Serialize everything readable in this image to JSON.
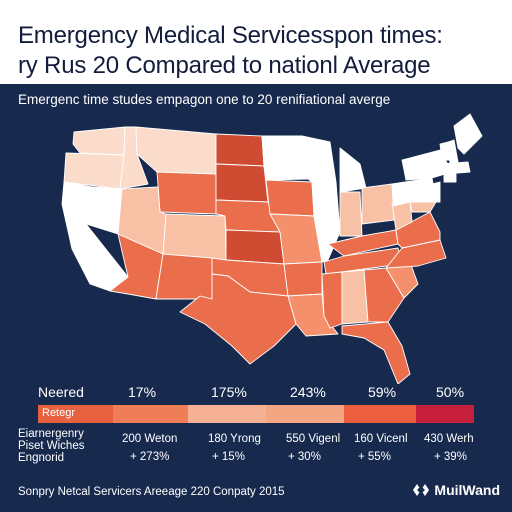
{
  "title_line1": "Emergency Medical Servicesspon times:",
  "title_line2": "ry Rus 20 Compared to nationl Average",
  "subtitle": "Emergenc time studes empagon one to 20 renifiational averge",
  "legend": {
    "headers": [
      "Neered",
      "17%",
      "175%",
      "243%",
      "59%",
      "50%"
    ],
    "bar_label": "Retegr",
    "bar_colors": [
      "#e8613f",
      "#ef7d57",
      "#f6b093",
      "#f4a582",
      "#ec5f3e",
      "#c51f3b"
    ]
  },
  "rows": {
    "labels": [
      "Eiarnergenry",
      "Piset Wiches",
      "Engnorid"
    ],
    "values": [
      "200 Weton",
      "180 Yrong",
      "550 Vigenl",
      "160 Vicenl",
      "430 Werh"
    ],
    "changes": [
      "+ 273%",
      "+ 15%",
      "+ 30%",
      "+ 55%",
      "+ 39%"
    ]
  },
  "footer": "Sonpry Netcal Servicers Areeage 220 Conpaty 2015",
  "brand": "MuilWand",
  "colors": {
    "dark": "#cf4c32",
    "mid": "#ea6e4c",
    "midlight": "#f4916c",
    "light": "#f8c0a5",
    "pale": "#fbdccb",
    "white": "#ffffff",
    "border": "#ffffff",
    "panel": "#172a4e",
    "title": "#131c3c"
  }
}
